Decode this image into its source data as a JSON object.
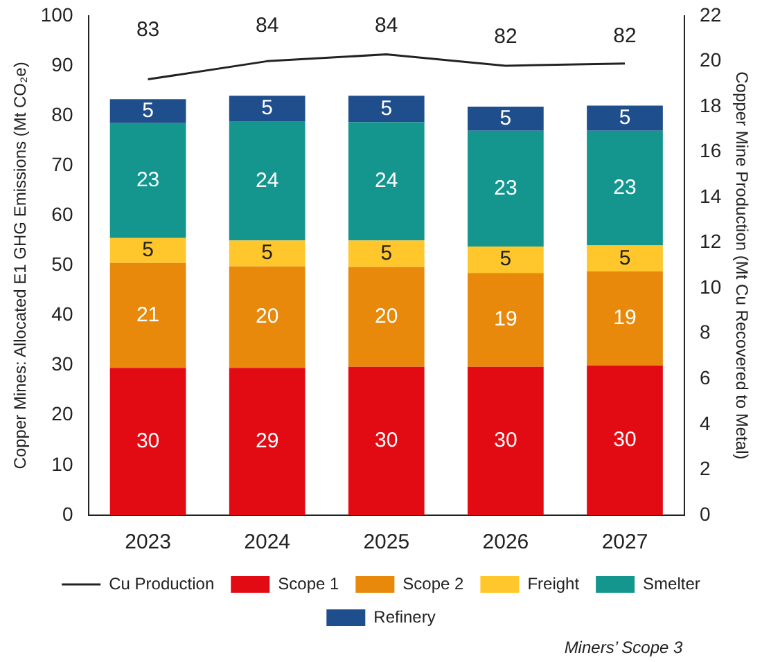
{
  "chart_data": {
    "type": "bar",
    "stacked": true,
    "categories": [
      "2023",
      "2024",
      "2025",
      "2026",
      "2027"
    ],
    "ylabel": "Copper Mines: Allocated E1 GHG Emissions (Mt CO₂e)",
    "y2label": "Copper Mine Production (Mt Cu Recovered to Metal)",
    "ylim": [
      0,
      100
    ],
    "yticks": [
      0,
      10,
      20,
      30,
      40,
      50,
      60,
      70,
      80,
      90,
      100
    ],
    "y2lim": [
      0,
      22
    ],
    "y2ticks": [
      0,
      2,
      4,
      6,
      8,
      10,
      12,
      14,
      16,
      18,
      20,
      22
    ],
    "series": [
      {
        "name": "Cu Production",
        "type": "line",
        "axis": "y2",
        "color": "#222222",
        "values": [
          19.2,
          20.0,
          20.3,
          19.8,
          19.9
        ],
        "marker": "none"
      },
      {
        "name": "Scope 1",
        "color": "#e30b13",
        "values": [
          29.5,
          29.5,
          29.7,
          29.7,
          30
        ],
        "value_labels": [
          "30",
          "29",
          "30",
          "30",
          "30"
        ]
      },
      {
        "name": "Scope 2",
        "color": "#e8890c",
        "values": [
          21,
          20.3,
          20,
          18.8,
          18.8
        ],
        "value_labels": [
          "21",
          "20",
          "20",
          "19",
          "19"
        ]
      },
      {
        "name": "Freight",
        "color": "#ffc72c",
        "values": [
          5,
          5.2,
          5.3,
          5.3,
          5.2
        ],
        "value_labels": [
          "5",
          "5",
          "5",
          "5",
          "5"
        ]
      },
      {
        "name": "Smelter",
        "color": "#14968f",
        "values": [
          23,
          23.8,
          23.7,
          23.2,
          23
        ],
        "value_labels": [
          "23",
          "24",
          "24",
          "23",
          "23"
        ]
      },
      {
        "name": "Refinery",
        "color": "#1f4e8c",
        "values": [
          4.8,
          5.2,
          5.3,
          4.8,
          5
        ],
        "value_labels": [
          "5",
          "5",
          "5",
          "5",
          "5"
        ]
      }
    ],
    "totals": [
      "83",
      "84",
      "84",
      "82",
      "82"
    ],
    "annotations": [
      "Miners’ Scope 3"
    ],
    "legend": "bottom",
    "grid": false
  }
}
